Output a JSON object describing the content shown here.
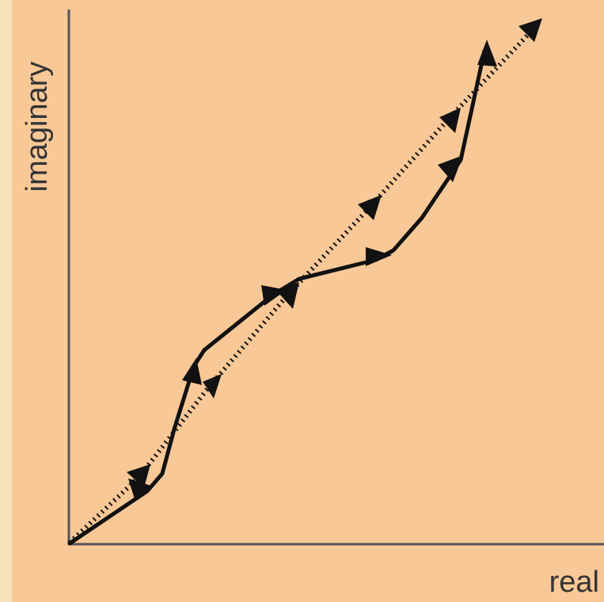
{
  "diagram": {
    "x_axis_label": "real",
    "y_axis_label": "imaginary",
    "colors": {
      "background": "#f9c897",
      "left_strip": "#f8e3bd",
      "axes": "#555555",
      "paths": "#111111",
      "labels": "#333333"
    }
  }
}
